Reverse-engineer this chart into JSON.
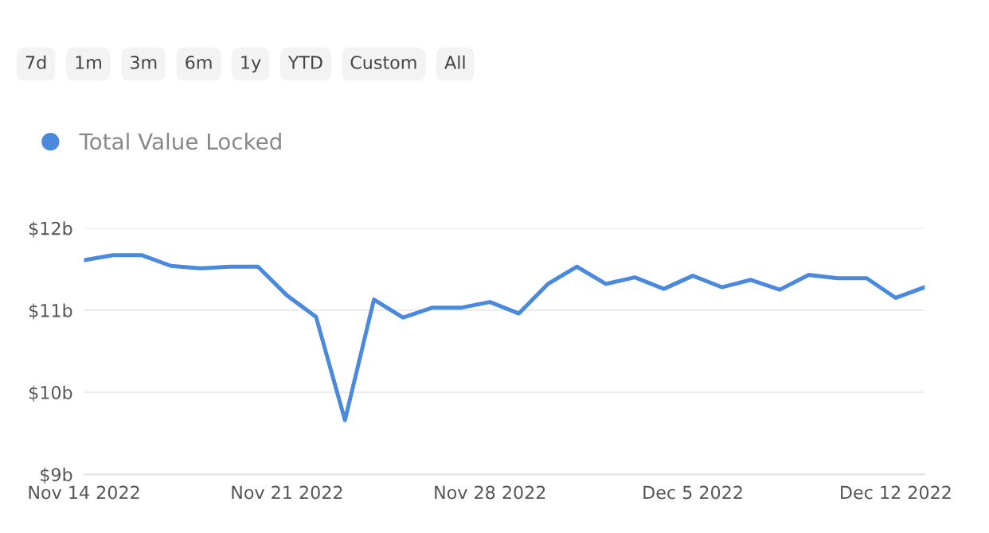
{
  "chart_data": {
    "type": "line",
    "annotations": [
      "7d",
      "1m",
      "3m",
      "6m",
      "1y",
      "YTD",
      "Custom",
      "All"
    ],
    "x": [
      "2022-11-14",
      "2022-11-15",
      "2022-11-16",
      "2022-11-17",
      "2022-11-18",
      "2022-11-19",
      "2022-11-20",
      "2022-11-21",
      "2022-11-22",
      "2022-11-23",
      "2022-11-24",
      "2022-11-25",
      "2022-11-26",
      "2022-11-27",
      "2022-11-28",
      "2022-11-29",
      "2022-11-30",
      "2022-12-01",
      "2022-12-02",
      "2022-12-03",
      "2022-12-04",
      "2022-12-05",
      "2022-12-06",
      "2022-12-07",
      "2022-12-08",
      "2022-12-09",
      "2022-12-10",
      "2022-12-11",
      "2022-12-12",
      "2022-12-13"
    ],
    "series": [
      {
        "name": "Total Value Locked",
        "color": "#4a89dc",
        "values": [
          11.61,
          11.67,
          11.67,
          11.54,
          11.51,
          11.53,
          11.53,
          11.18,
          10.92,
          9.66,
          11.13,
          10.91,
          11.03,
          11.03,
          11.1,
          10.96,
          11.32,
          11.53,
          11.32,
          11.4,
          11.26,
          11.42,
          11.28,
          11.37,
          11.25,
          11.43,
          11.39,
          11.39,
          11.15,
          11.28
        ]
      }
    ],
    "xlim": [
      "2022-11-14",
      "2022-12-13"
    ],
    "xticks": [
      {
        "value": "2022-11-14",
        "label": "Nov 14 2022"
      },
      {
        "value": "2022-11-21",
        "label": "Nov 21 2022"
      },
      {
        "value": "2022-11-28",
        "label": "Nov 28 2022"
      },
      {
        "value": "2022-12-05",
        "label": "Dec 5 2022"
      },
      {
        "value": "2022-12-12",
        "label": "Dec 12 2022"
      }
    ],
    "ylim": [
      9,
      12
    ],
    "yticks": [
      {
        "value": 9,
        "label": "$9b"
      },
      {
        "value": 10,
        "label": "$10b"
      },
      {
        "value": 11,
        "label": "$11b"
      },
      {
        "value": 12,
        "label": "$12b"
      }
    ],
    "grid": "y",
    "legend": "top left",
    "marker": "none",
    "line_style": "solid"
  }
}
